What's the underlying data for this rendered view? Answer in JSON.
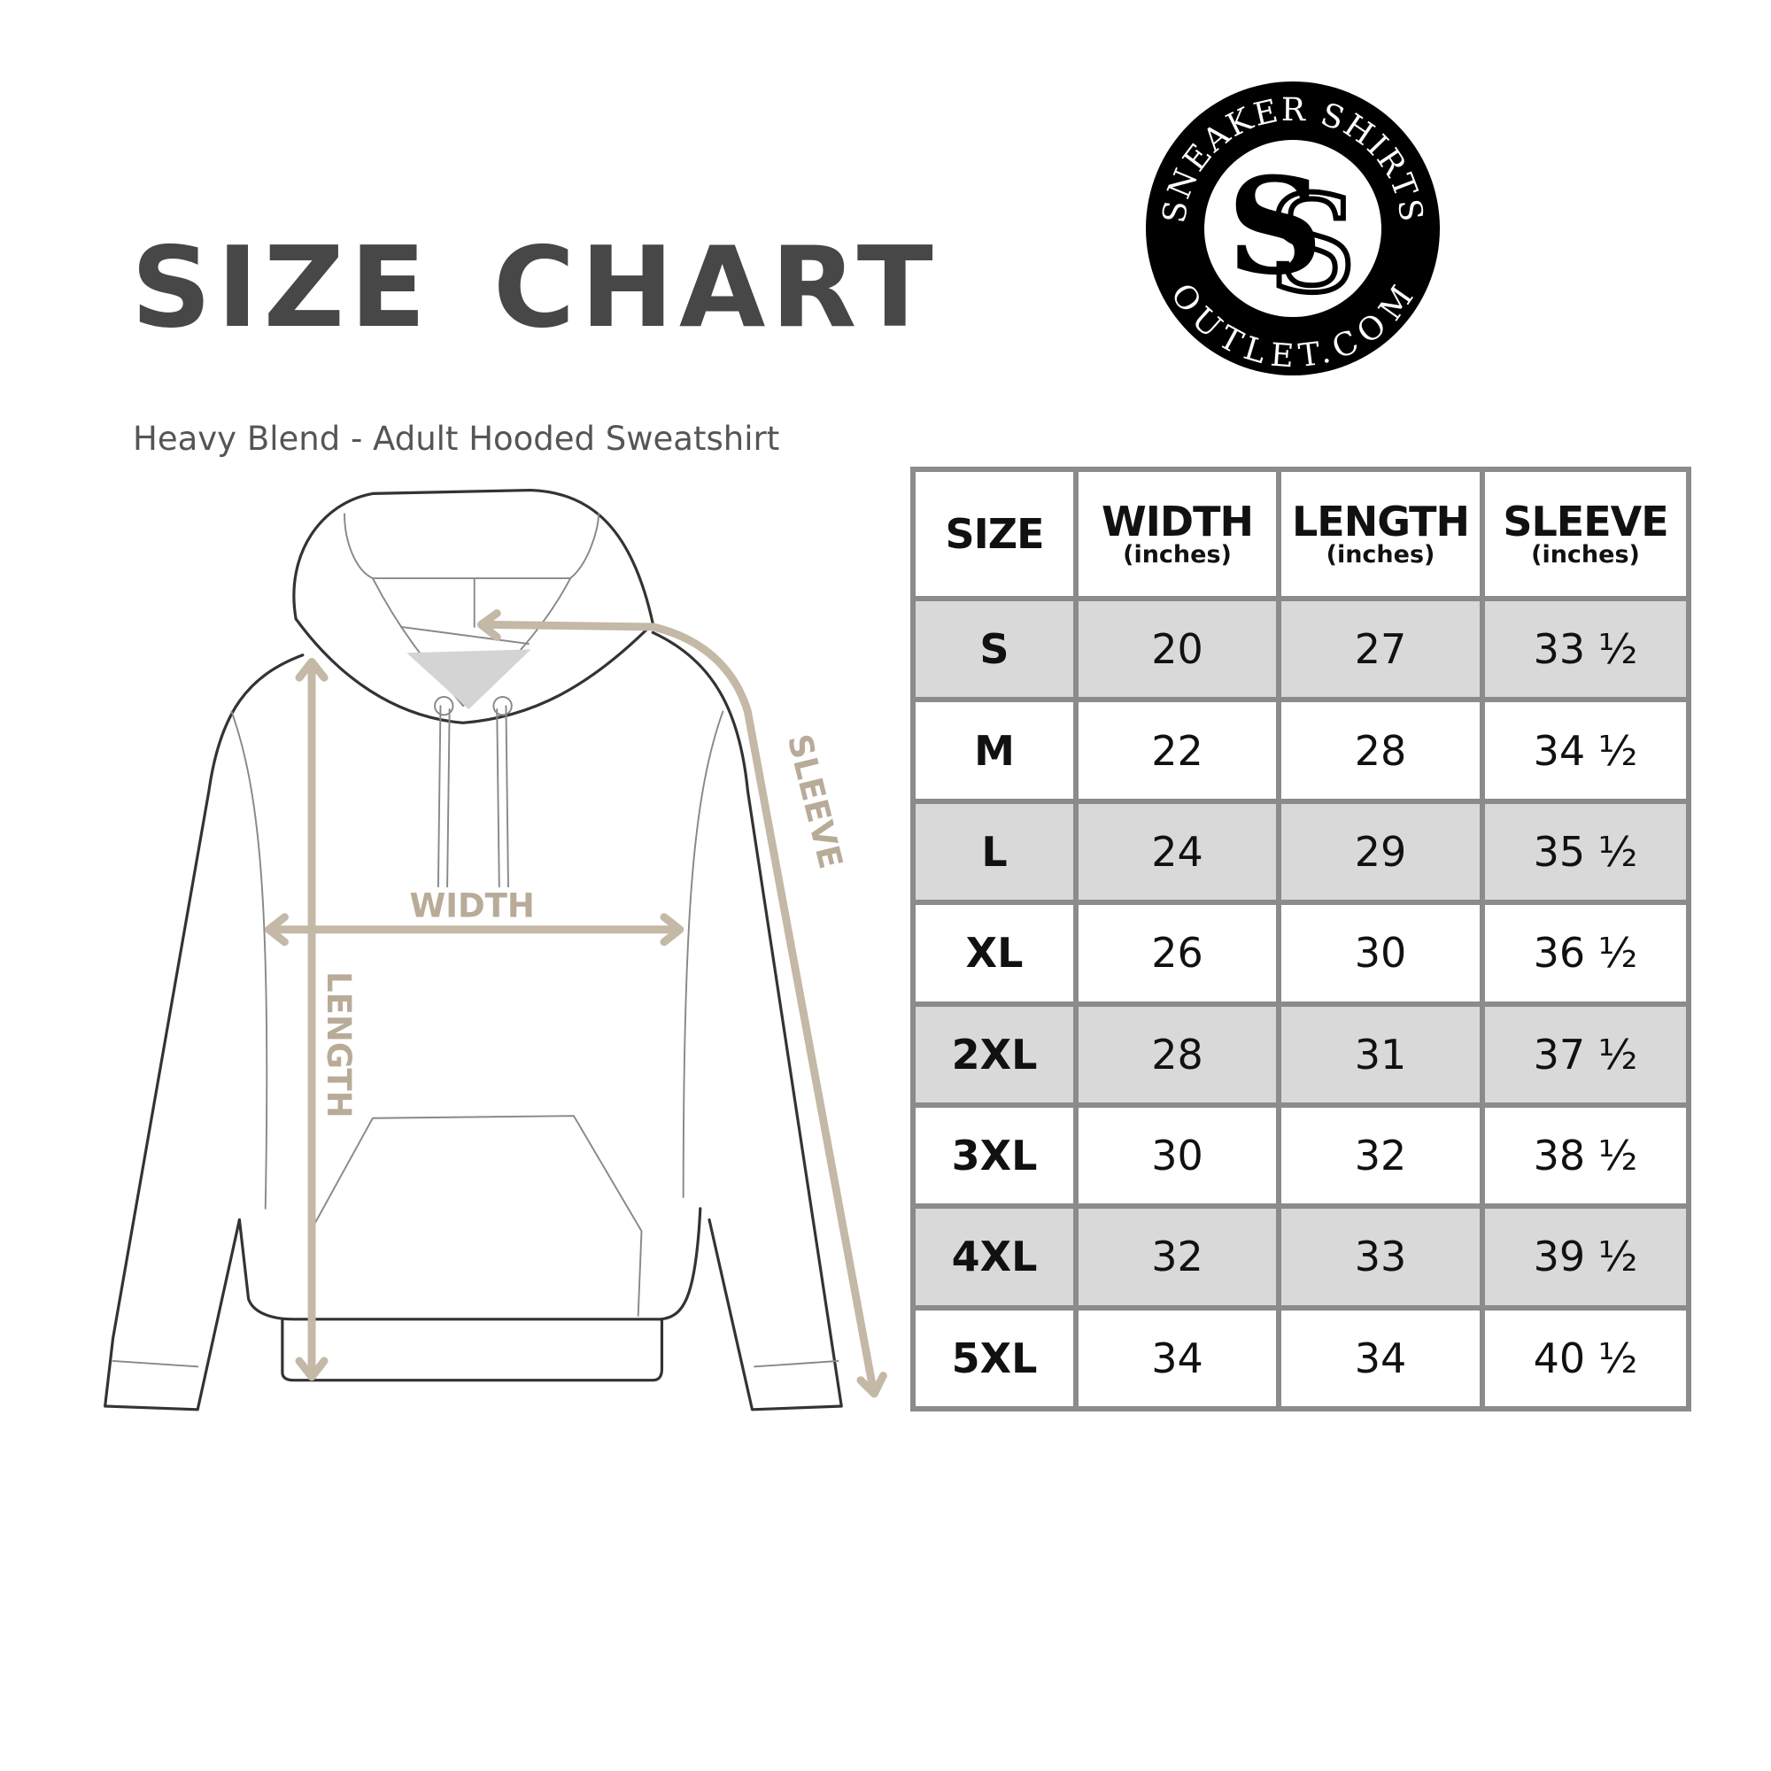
{
  "header": {
    "title": "SIZE CHART",
    "subtitle": "Heavy Blend - Adult Hooded Sweatshirt"
  },
  "logo": {
    "top_text": "SNEAKER SHIRTS",
    "bottom_text": "OUTLET.COM",
    "monogram": "SS"
  },
  "diagram": {
    "labels": {
      "width": "WIDTH",
      "length": "LENGTH",
      "sleeve": "SLEEVE"
    },
    "arrow_color": "#c4b8a6"
  },
  "table": {
    "headers": [
      {
        "main": "SIZE",
        "unit": ""
      },
      {
        "main": "WIDTH",
        "unit": "(inches)"
      },
      {
        "main": "LENGTH",
        "unit": "(inches)"
      },
      {
        "main": "SLEEVE",
        "unit": "(inches)"
      }
    ],
    "rows": [
      [
        "S",
        "20",
        "27",
        "33 ½"
      ],
      [
        "M",
        "22",
        "28",
        "34 ½"
      ],
      [
        "L",
        "24",
        "29",
        "35 ½"
      ],
      [
        "XL",
        "26",
        "30",
        "36 ½"
      ],
      [
        "2XL",
        "28",
        "31",
        "37 ½"
      ],
      [
        "3XL",
        "30",
        "32",
        "38 ½"
      ],
      [
        "4XL",
        "32",
        "33",
        "39 ½"
      ],
      [
        "5XL",
        "34",
        "34",
        "40 ½"
      ]
    ],
    "shaded_row_color": "#d9d9d9",
    "border_color": "#8b8b8b"
  }
}
